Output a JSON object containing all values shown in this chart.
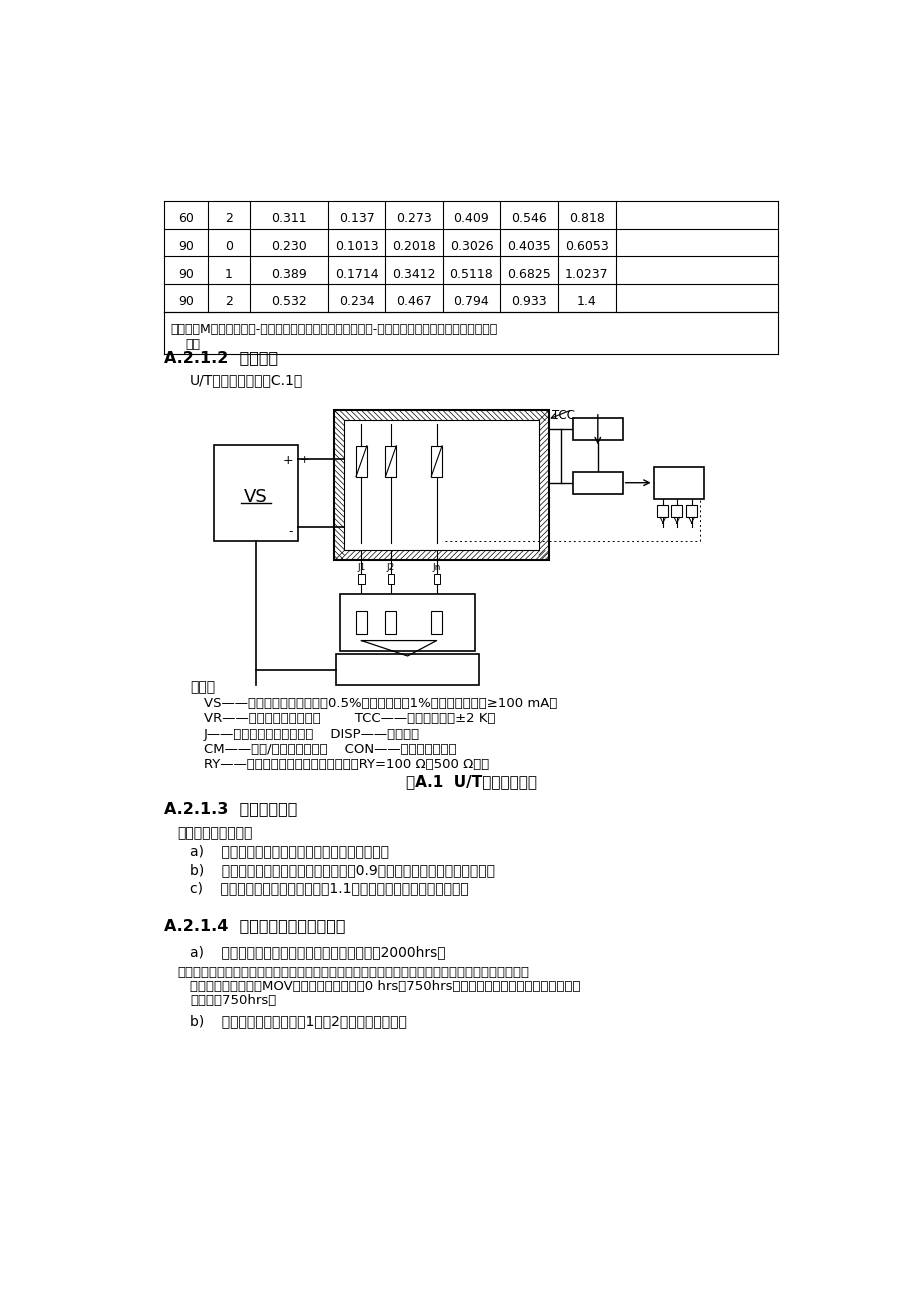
{
  "bg_color": "#ffffff",
  "table_rows": [
    [
      "60",
      "2",
      "0.311",
      "0.137",
      "0.273",
      "0.409",
      "0.546",
      "0.818"
    ],
    [
      "90",
      "0",
      "0.230",
      "0.1013",
      "0.2018",
      "0.3026",
      "0.4035",
      "0.6053"
    ],
    [
      "90",
      "1",
      "0.389",
      "0.1714",
      "0.3412",
      "0.5118",
      "0.6825",
      "1.0237"
    ],
    [
      "90",
      "2",
      "0.532",
      "0.234",
      "0.467",
      "0.794",
      "0.933",
      "1.4"
    ]
  ],
  "table_note_line1": "注：表中M级的累积元件-小时数用作计算其他各级累积元件-小时数的基准，它不是本表的构成项",
  "table_note_line2": "目。",
  "section_212": "A.2.1.2  试验装置",
  "section_212_text": "U/T试验装置图见图C.1。",
  "fig_caption": "图A.1  U/T应力试验装置",
  "legend_title": "说明：",
  "legend_line1": "VS——可调直流电源，稳定度0.5%，交流文波＜1%，输出电流能力≥100 mA；",
  "legend_line2": "VR——被试验压敏电阻器；        TCC——恒温试验筱，±2 K；",
  "legend_line3": "J——样品超流切断继电器；    DISP——显示屏；",
  "legend_line4": "CM——电流/功率测量电路；    CON——超流检测电路；",
  "legend_line5": "RY——电流测量电阻（若无特别规定，RY=100 Ω～500 Ω）。",
  "section_213": "A.2.1.3  样品失效判据",
  "section_213_intro": "样品失效判据如下：",
  "section_213_a": "试验中超流继电器动作的样品，判定为失效；",
  "section_213_b": "试验后压敏电压测量値应等于或小于0.9倍初始値的样品，判定为失效；",
  "section_213_c": "试验后限制电压値等于或大于1.1倍初始値的样品，判定为失效。",
  "section_214": "A.2.1.4  确定试验时间和样品数量",
  "section_214_a": "试验时间：除非另有规定，鉴定试验时间为2000hrs。",
  "section_214_note_line1": "注：寿命试验时间应满足两个要求：第一，有足够多的试样参数产生老化；第二，能区别真实老化效",
  "section_214_note_line2": "应与随机干扰因素。MOV的早期失效出现在ﾈ0 hrs～750hrsﾉ试验时间内，因此寿命试验时间应",
  "section_214_note_line3": "明显多于750hrs。",
  "section_214_b": "样品数量：样品数量有1）、2）两种方案规定。"
}
